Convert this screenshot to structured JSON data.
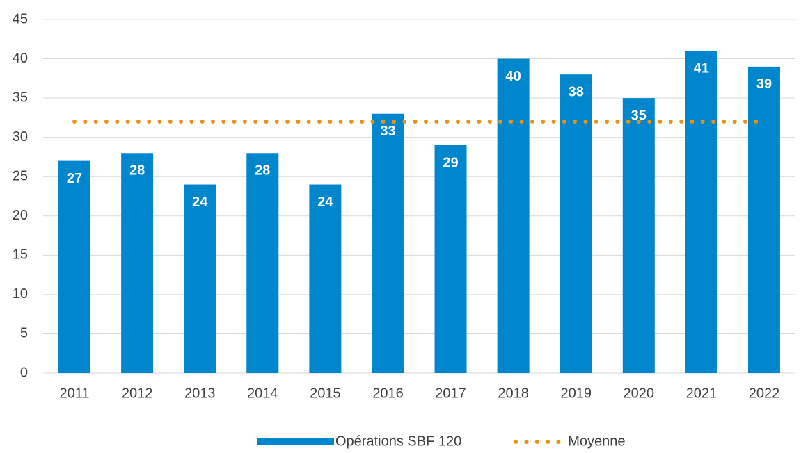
{
  "chart_data": {
    "type": "bar",
    "categories": [
      "2011",
      "2012",
      "2013",
      "2014",
      "2015",
      "2016",
      "2017",
      "2018",
      "2019",
      "2020",
      "2021",
      "2022"
    ],
    "series": [
      {
        "name": "Opérations SBF 120",
        "color": "#0086cc",
        "type": "bar",
        "values": [
          27,
          28,
          24,
          28,
          24,
          33,
          29,
          40,
          38,
          35,
          41,
          39
        ]
      },
      {
        "name": "Moyenne",
        "color": "#f0900f",
        "type": "line",
        "line_style": "dotted",
        "values": [
          32,
          32,
          32,
          32,
          32,
          32,
          32,
          32,
          32,
          32,
          32,
          32
        ]
      }
    ],
    "ylim": [
      0,
      45
    ],
    "yticks": [
      0,
      5,
      10,
      15,
      20,
      25,
      30,
      35,
      40,
      45
    ],
    "grid": true,
    "legend": "bottom"
  }
}
